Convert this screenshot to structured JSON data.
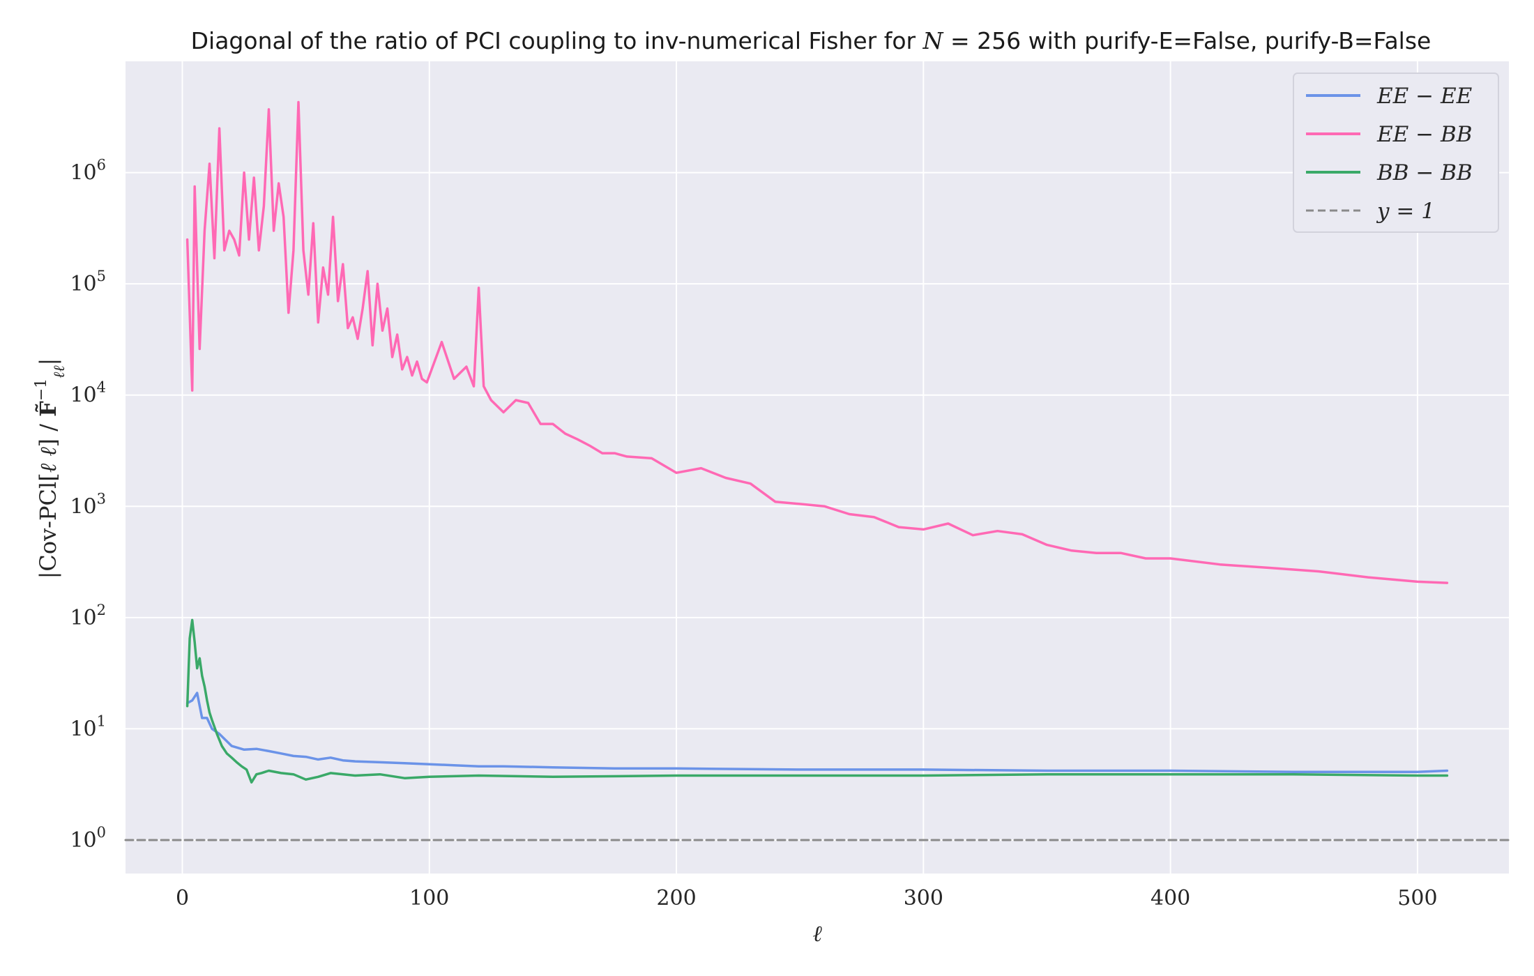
{
  "chart_data": {
    "type": "line",
    "title": "Diagonal of the ratio of PCI coupling to inv-numerical Fisher for N = 256 with purify-E=False, purify-B=False",
    "xlabel": "ℓ",
    "ylabel": "|Cov-PCl[ℓ ℓ] / F̃⁻¹ℓℓ|",
    "xlim": [
      -23,
      537
    ],
    "ylim": [
      0.5,
      10000000
    ],
    "yscale": "log",
    "grid": true,
    "legend_position": "top-right",
    "x_ticks": [
      {
        "value": 0,
        "label": "0"
      },
      {
        "value": 100,
        "label": "100"
      },
      {
        "value": 200,
        "label": "200"
      },
      {
        "value": 300,
        "label": "300"
      },
      {
        "value": 400,
        "label": "400"
      },
      {
        "value": 500,
        "label": "500"
      }
    ],
    "y_ticks": [
      {
        "value": 1,
        "base": "10",
        "exp": "0"
      },
      {
        "value": 10,
        "base": "10",
        "exp": "1"
      },
      {
        "value": 100,
        "base": "10",
        "exp": "2"
      },
      {
        "value": 1000,
        "base": "10",
        "exp": "3"
      },
      {
        "value": 10000,
        "base": "10",
        "exp": "4"
      },
      {
        "value": 100000,
        "base": "10",
        "exp": "5"
      },
      {
        "value": 1000000,
        "base": "10",
        "exp": "6"
      }
    ],
    "series": [
      {
        "name": "EE − EE",
        "color": "#6b93e8",
        "x": [
          2,
          4,
          6,
          8,
          10,
          12,
          15,
          20,
          25,
          30,
          35,
          40,
          45,
          50,
          55,
          60,
          65,
          70,
          80,
          90,
          100,
          110,
          120,
          130,
          150,
          175,
          200,
          250,
          300,
          350,
          400,
          450,
          500,
          512
        ],
        "y": [
          17,
          18,
          21,
          12.5,
          12.5,
          10,
          9,
          7,
          6.5,
          6.6,
          6.3,
          6,
          5.7,
          5.6,
          5.3,
          5.5,
          5.2,
          5.1,
          5,
          4.9,
          4.8,
          4.7,
          4.6,
          4.6,
          4.5,
          4.4,
          4.4,
          4.3,
          4.3,
          4.2,
          4.2,
          4.1,
          4.1,
          4.2
        ]
      },
      {
        "name": "EE − BB",
        "color": "#ff69b4",
        "x": [
          2,
          4,
          5,
          7,
          9,
          11,
          13,
          15,
          17,
          19,
          21,
          23,
          25,
          27,
          29,
          31,
          33,
          35,
          37,
          39,
          41,
          43,
          45,
          47,
          49,
          51,
          53,
          55,
          57,
          59,
          61,
          63,
          65,
          67,
          69,
          71,
          73,
          75,
          77,
          79,
          81,
          83,
          85,
          87,
          89,
          91,
          93,
          95,
          97,
          99,
          105,
          110,
          115,
          118,
          120,
          122,
          125,
          130,
          135,
          140,
          145,
          150,
          155,
          160,
          165,
          170,
          175,
          180,
          190,
          200,
          210,
          220,
          230,
          240,
          250,
          260,
          270,
          280,
          290,
          300,
          310,
          320,
          330,
          340,
          350,
          360,
          370,
          380,
          390,
          400,
          420,
          440,
          460,
          480,
          500,
          512
        ],
        "y": [
          250000,
          11000,
          750000,
          26000,
          300000,
          1200000,
          170000,
          2500000,
          200000,
          300000,
          250000,
          180000,
          1000000,
          250000,
          900000,
          200000,
          500000,
          3700000,
          300000,
          800000,
          400000,
          55000,
          200000,
          4300000,
          200000,
          80000,
          350000,
          45000,
          140000,
          80000,
          400000,
          70000,
          150000,
          40000,
          50000,
          32000,
          60000,
          130000,
          28000,
          100000,
          38000,
          60000,
          22000,
          35000,
          17000,
          22000,
          15000,
          20000,
          14000,
          13000,
          30000,
          14000,
          18000,
          12000,
          92000,
          12000,
          9000,
          7000,
          9000,
          8500,
          5500,
          5500,
          4500,
          4000,
          3500,
          3000,
          3000,
          2800,
          2700,
          2000,
          2200,
          1800,
          1600,
          1100,
          1050,
          1000,
          850,
          800,
          650,
          620,
          700,
          550,
          600,
          560,
          450,
          400,
          380,
          380,
          340,
          340,
          300,
          280,
          260,
          230,
          210,
          205
        ]
      },
      {
        "name": "BB − BB",
        "color": "#3aa968",
        "x": [
          2,
          3,
          4,
          5,
          6,
          7,
          8,
          9,
          10,
          11,
          12,
          14,
          16,
          18,
          20,
          22,
          24,
          26,
          28,
          30,
          32,
          35,
          40,
          45,
          50,
          55,
          60,
          70,
          80,
          90,
          100,
          120,
          150,
          200,
          250,
          300,
          350,
          400,
          450,
          500,
          512
        ],
        "y": [
          16,
          65,
          95,
          60,
          35,
          43,
          30,
          24,
          18,
          14,
          12,
          9,
          7,
          6,
          5.5,
          5,
          4.6,
          4.3,
          3.3,
          3.9,
          4,
          4.2,
          4,
          3.9,
          3.5,
          3.7,
          4,
          3.8,
          3.9,
          3.6,
          3.7,
          3.8,
          3.7,
          3.8,
          3.8,
          3.8,
          3.9,
          3.9,
          3.9,
          3.8,
          3.8
        ]
      },
      {
        "name": "y = 1",
        "color": "#8a8a8a",
        "style": "dashed",
        "x": [
          -23,
          537
        ],
        "y": [
          1,
          1
        ]
      }
    ]
  }
}
